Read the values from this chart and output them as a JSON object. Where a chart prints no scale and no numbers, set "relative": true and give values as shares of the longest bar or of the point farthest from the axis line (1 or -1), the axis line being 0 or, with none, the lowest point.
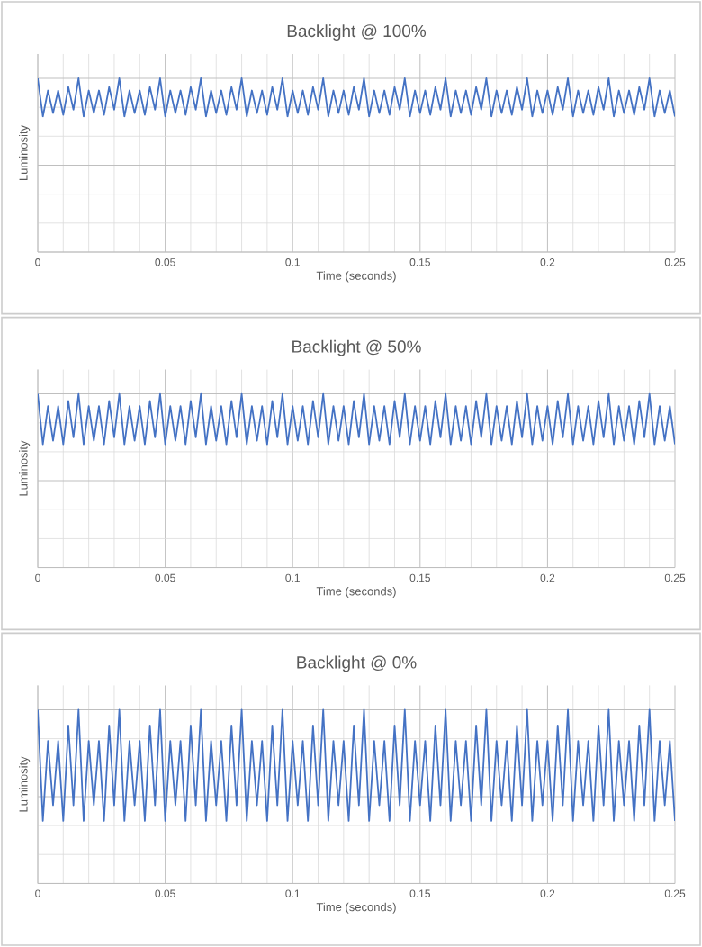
{
  "chart_data": [
    {
      "type": "line",
      "title": "Backlight @ 100%",
      "xlabel": "Time (seconds)",
      "ylabel": "Luminosity",
      "relative": true,
      "grid": true,
      "xlim": [
        0,
        0.25
      ],
      "xticks": [
        0,
        0.05,
        0.1,
        0.15,
        0.2,
        0.25
      ],
      "x": [
        0,
        0.002,
        0.004,
        0.006,
        0.008,
        0.01,
        0.012,
        0.014,
        0.016,
        0.018,
        0.02,
        0.022,
        0.024,
        0.026,
        0.028,
        0.03,
        0.032,
        0.034,
        0.036,
        0.038,
        0.04,
        0.042,
        0.044,
        0.046,
        0.048,
        0.05,
        0.052,
        0.054,
        0.056,
        0.058,
        0.06,
        0.062,
        0.064,
        0.066,
        0.068,
        0.07,
        0.072,
        0.074,
        0.076,
        0.078,
        0.08,
        0.082,
        0.084,
        0.086,
        0.088,
        0.09,
        0.092,
        0.094,
        0.096,
        0.098,
        0.1,
        0.102,
        0.104,
        0.106,
        0.108,
        0.11,
        0.112,
        0.114,
        0.116,
        0.118,
        0.12,
        0.122,
        0.124,
        0.126,
        0.128,
        0.13,
        0.132,
        0.134,
        0.136,
        0.138,
        0.14,
        0.142,
        0.144,
        0.146,
        0.148,
        0.15,
        0.152,
        0.154,
        0.156,
        0.158,
        0.16,
        0.162,
        0.164,
        0.166,
        0.168,
        0.17,
        0.172,
        0.174,
        0.176,
        0.178,
        0.18,
        0.182,
        0.184,
        0.186,
        0.188,
        0.19,
        0.192,
        0.194,
        0.196,
        0.198,
        0.2,
        0.202,
        0.204,
        0.206,
        0.208,
        0.21,
        0.212,
        0.214,
        0.216,
        0.218,
        0.22,
        0.222,
        0.224,
        0.226,
        0.228,
        0.23,
        0.232,
        0.234,
        0.236,
        0.238,
        0.24,
        0.242,
        0.244,
        0.246,
        0.248,
        0.25
      ],
      "series": [
        {
          "color": "#4472c4",
          "values": [
            1.0,
            0.78,
            0.93,
            0.8,
            0.93,
            0.79,
            0.95,
            0.82,
            1.0,
            0.78,
            0.93,
            0.8,
            0.93,
            0.79,
            0.95,
            0.82,
            1.0,
            0.78,
            0.93,
            0.8,
            0.93,
            0.79,
            0.95,
            0.82,
            1.0,
            0.78,
            0.93,
            0.8,
            0.93,
            0.79,
            0.95,
            0.82,
            1.0,
            0.78,
            0.93,
            0.8,
            0.93,
            0.79,
            0.95,
            0.82,
            1.0,
            0.78,
            0.93,
            0.8,
            0.93,
            0.79,
            0.95,
            0.82,
            1.0,
            0.78,
            0.93,
            0.8,
            0.93,
            0.79,
            0.95,
            0.82,
            1.0,
            0.78,
            0.93,
            0.8,
            0.93,
            0.79,
            0.95,
            0.82,
            1.0,
            0.78,
            0.93,
            0.8,
            0.93,
            0.79,
            0.95,
            0.82,
            1.0,
            0.78,
            0.93,
            0.8,
            0.93,
            0.79,
            0.95,
            0.82,
            1.0,
            0.78,
            0.93,
            0.8,
            0.93,
            0.79,
            0.95,
            0.82,
            1.0,
            0.78,
            0.93,
            0.8,
            0.93,
            0.79,
            0.95,
            0.82,
            1.0,
            0.78,
            0.93,
            0.8,
            0.93,
            0.79,
            0.95,
            0.82,
            1.0,
            0.78,
            0.93,
            0.8,
            0.93,
            0.79,
            0.95,
            0.82,
            1.0,
            0.78,
            0.93,
            0.8,
            0.93,
            0.79,
            0.95,
            0.82,
            1.0,
            0.78,
            0.93,
            0.8,
            0.93,
            0.78
          ]
        }
      ]
    },
    {
      "type": "line",
      "title": "Backlight @ 50%",
      "xlabel": "Time (seconds)",
      "ylabel": "Luminosity",
      "relative": true,
      "grid": true,
      "xlim": [
        0,
        0.25
      ],
      "xticks": [
        0,
        0.05,
        0.1,
        0.15,
        0.2,
        0.25
      ],
      "x": [
        0,
        0.002,
        0.004,
        0.006,
        0.008,
        0.01,
        0.012,
        0.014,
        0.016,
        0.018,
        0.02,
        0.022,
        0.024,
        0.026,
        0.028,
        0.03,
        0.032,
        0.034,
        0.036,
        0.038,
        0.04,
        0.042,
        0.044,
        0.046,
        0.048,
        0.05,
        0.052,
        0.054,
        0.056,
        0.058,
        0.06,
        0.062,
        0.064,
        0.066,
        0.068,
        0.07,
        0.072,
        0.074,
        0.076,
        0.078,
        0.08,
        0.082,
        0.084,
        0.086,
        0.088,
        0.09,
        0.092,
        0.094,
        0.096,
        0.098,
        0.1,
        0.102,
        0.104,
        0.106,
        0.108,
        0.11,
        0.112,
        0.114,
        0.116,
        0.118,
        0.12,
        0.122,
        0.124,
        0.126,
        0.128,
        0.13,
        0.132,
        0.134,
        0.136,
        0.138,
        0.14,
        0.142,
        0.144,
        0.146,
        0.148,
        0.15,
        0.152,
        0.154,
        0.156,
        0.158,
        0.16,
        0.162,
        0.164,
        0.166,
        0.168,
        0.17,
        0.172,
        0.174,
        0.176,
        0.178,
        0.18,
        0.182,
        0.184,
        0.186,
        0.188,
        0.19,
        0.192,
        0.194,
        0.196,
        0.198,
        0.2,
        0.202,
        0.204,
        0.206,
        0.208,
        0.21,
        0.212,
        0.214,
        0.216,
        0.218,
        0.22,
        0.222,
        0.224,
        0.226,
        0.228,
        0.23,
        0.232,
        0.234,
        0.236,
        0.238,
        0.24,
        0.242,
        0.244,
        0.246,
        0.248,
        0.25
      ],
      "series": [
        {
          "color": "#4472c4",
          "values": [
            1.0,
            0.71,
            0.93,
            0.73,
            0.93,
            0.71,
            0.96,
            0.75,
            1.0,
            0.71,
            0.93,
            0.73,
            0.93,
            0.71,
            0.96,
            0.75,
            1.0,
            0.71,
            0.93,
            0.73,
            0.93,
            0.71,
            0.96,
            0.75,
            1.0,
            0.71,
            0.93,
            0.73,
            0.93,
            0.71,
            0.96,
            0.75,
            1.0,
            0.71,
            0.93,
            0.73,
            0.93,
            0.71,
            0.96,
            0.75,
            1.0,
            0.71,
            0.93,
            0.73,
            0.93,
            0.71,
            0.96,
            0.75,
            1.0,
            0.71,
            0.93,
            0.73,
            0.93,
            0.71,
            0.96,
            0.75,
            1.0,
            0.71,
            0.93,
            0.73,
            0.93,
            0.71,
            0.96,
            0.75,
            1.0,
            0.71,
            0.93,
            0.73,
            0.93,
            0.71,
            0.96,
            0.75,
            1.0,
            0.71,
            0.93,
            0.73,
            0.93,
            0.71,
            0.96,
            0.75,
            1.0,
            0.71,
            0.93,
            0.73,
            0.93,
            0.71,
            0.96,
            0.75,
            1.0,
            0.71,
            0.93,
            0.73,
            0.93,
            0.71,
            0.96,
            0.75,
            1.0,
            0.71,
            0.93,
            0.73,
            0.93,
            0.71,
            0.96,
            0.75,
            1.0,
            0.71,
            0.93,
            0.73,
            0.93,
            0.71,
            0.96,
            0.75,
            1.0,
            0.71,
            0.93,
            0.73,
            0.93,
            0.71,
            0.96,
            0.75,
            1.0,
            0.71,
            0.93,
            0.73,
            0.93,
            0.71
          ]
        }
      ]
    },
    {
      "type": "line",
      "title": "Backlight @ 0%",
      "xlabel": "Time (seconds)",
      "ylabel": "Luminosity",
      "relative": true,
      "grid": true,
      "xlim": [
        0,
        0.25
      ],
      "xticks": [
        0,
        0.05,
        0.1,
        0.15,
        0.2,
        0.25
      ],
      "x": [
        0,
        0.002,
        0.004,
        0.006,
        0.008,
        0.01,
        0.012,
        0.014,
        0.016,
        0.018,
        0.02,
        0.022,
        0.024,
        0.026,
        0.028,
        0.03,
        0.032,
        0.034,
        0.036,
        0.038,
        0.04,
        0.042,
        0.044,
        0.046,
        0.048,
        0.05,
        0.052,
        0.054,
        0.056,
        0.058,
        0.06,
        0.062,
        0.064,
        0.066,
        0.068,
        0.07,
        0.072,
        0.074,
        0.076,
        0.078,
        0.08,
        0.082,
        0.084,
        0.086,
        0.088,
        0.09,
        0.092,
        0.094,
        0.096,
        0.098,
        0.1,
        0.102,
        0.104,
        0.106,
        0.108,
        0.11,
        0.112,
        0.114,
        0.116,
        0.118,
        0.12,
        0.122,
        0.124,
        0.126,
        0.128,
        0.13,
        0.132,
        0.134,
        0.136,
        0.138,
        0.14,
        0.142,
        0.144,
        0.146,
        0.148,
        0.15,
        0.152,
        0.154,
        0.156,
        0.158,
        0.16,
        0.162,
        0.164,
        0.166,
        0.168,
        0.17,
        0.172,
        0.174,
        0.176,
        0.178,
        0.18,
        0.182,
        0.184,
        0.186,
        0.188,
        0.19,
        0.192,
        0.194,
        0.196,
        0.198,
        0.2,
        0.202,
        0.204,
        0.206,
        0.208,
        0.21,
        0.212,
        0.214,
        0.216,
        0.218,
        0.22,
        0.222,
        0.224,
        0.226,
        0.228,
        0.23,
        0.232,
        0.234,
        0.236,
        0.238,
        0.24,
        0.242,
        0.244,
        0.246,
        0.248,
        0.25
      ],
      "series": [
        {
          "color": "#4472c4",
          "values": [
            1.0,
            0.36,
            0.82,
            0.45,
            0.82,
            0.36,
            0.91,
            0.45,
            1.0,
            0.36,
            0.82,
            0.45,
            0.82,
            0.36,
            0.91,
            0.45,
            1.0,
            0.36,
            0.82,
            0.45,
            0.82,
            0.36,
            0.91,
            0.45,
            1.0,
            0.36,
            0.82,
            0.45,
            0.82,
            0.36,
            0.91,
            0.45,
            1.0,
            0.36,
            0.82,
            0.45,
            0.82,
            0.36,
            0.91,
            0.45,
            1.0,
            0.36,
            0.82,
            0.45,
            0.82,
            0.36,
            0.91,
            0.45,
            1.0,
            0.36,
            0.82,
            0.45,
            0.82,
            0.36,
            0.91,
            0.45,
            1.0,
            0.36,
            0.82,
            0.45,
            0.82,
            0.36,
            0.91,
            0.45,
            1.0,
            0.36,
            0.82,
            0.45,
            0.82,
            0.36,
            0.91,
            0.45,
            1.0,
            0.36,
            0.82,
            0.45,
            0.82,
            0.36,
            0.91,
            0.45,
            1.0,
            0.36,
            0.82,
            0.45,
            0.82,
            0.36,
            0.91,
            0.45,
            1.0,
            0.36,
            0.82,
            0.45,
            0.82,
            0.36,
            0.91,
            0.45,
            1.0,
            0.36,
            0.82,
            0.45,
            0.82,
            0.36,
            0.91,
            0.45,
            1.0,
            0.36,
            0.82,
            0.45,
            0.82,
            0.36,
            0.91,
            0.45,
            1.0,
            0.36,
            0.82,
            0.45,
            0.82,
            0.36,
            0.91,
            0.45,
            1.0,
            0.36,
            0.82,
            0.45,
            0.82,
            0.36
          ]
        }
      ]
    }
  ]
}
